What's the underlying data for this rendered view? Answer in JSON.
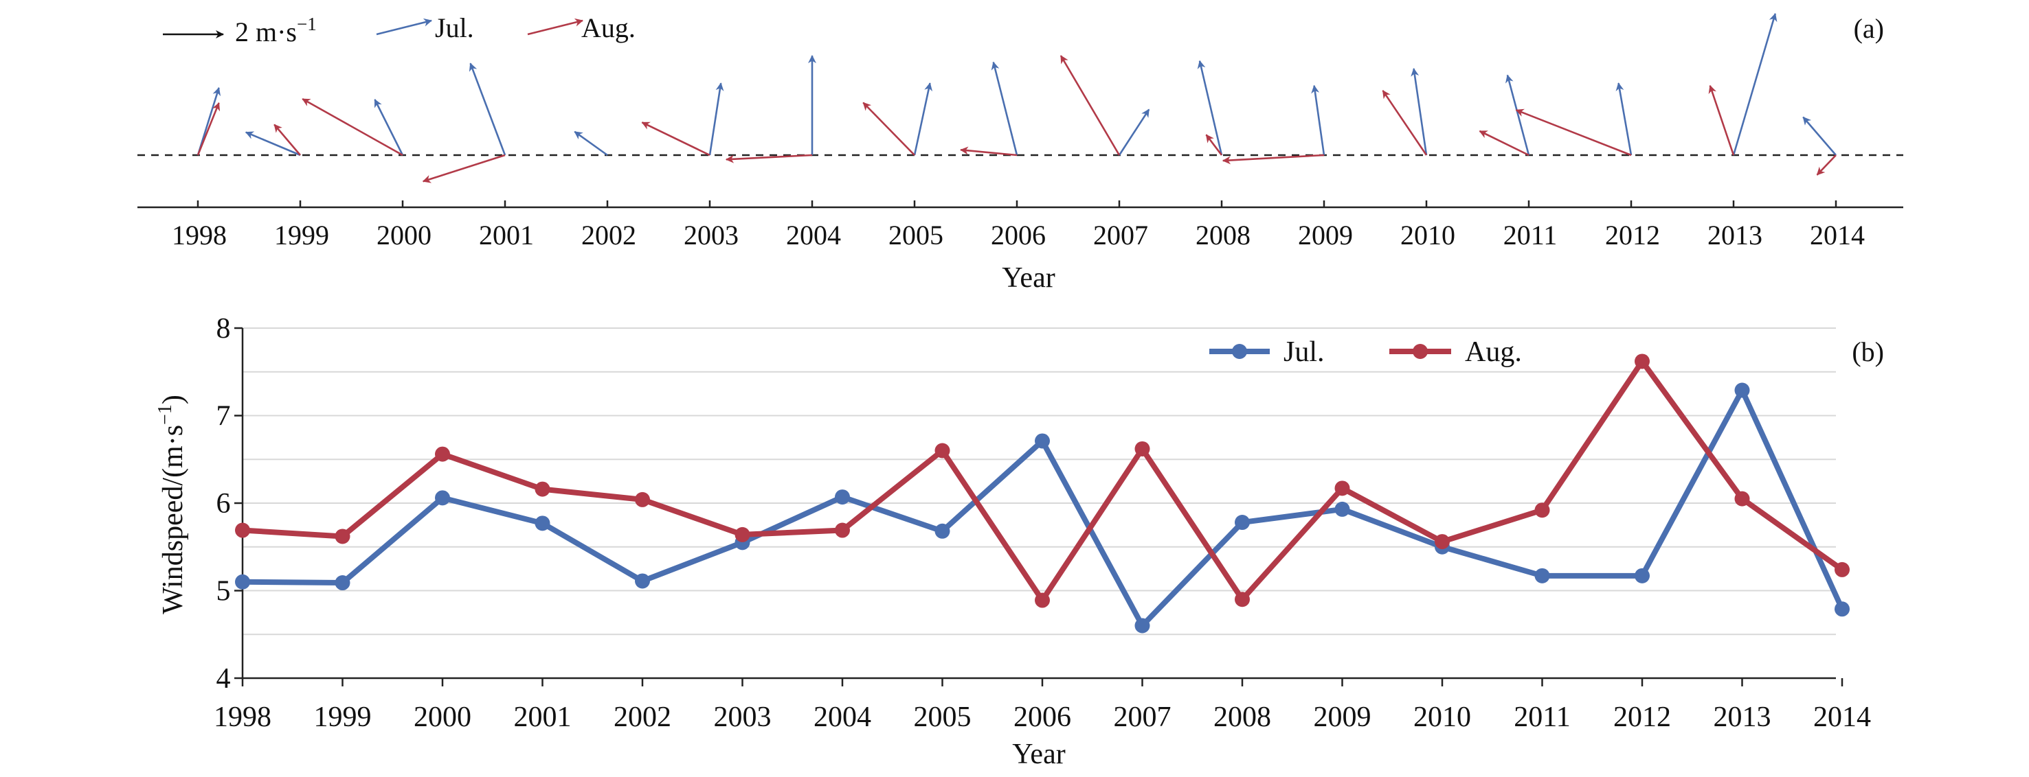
{
  "colors": {
    "jul": "#4a6fb0",
    "aug": "#b23a48",
    "axis": "#222222",
    "grid": "#d8d8d8"
  },
  "chart_data": [
    {
      "type": "vector",
      "panel_label": "(a)",
      "xlabel": "Year",
      "categories": [
        "1998",
        "1999",
        "2000",
        "2001",
        "2002",
        "2003",
        "2004",
        "2005",
        "2006",
        "2007",
        "2008",
        "2009",
        "2010",
        "2011",
        "2012",
        "2013",
        "2014"
      ],
      "reference": {
        "arrow_label": "2 m·s",
        "exponent": "−1",
        "length_ms": 2
      },
      "legend": [
        {
          "name": "Jul.",
          "color": "#4a6fb0"
        },
        {
          "name": "Aug.",
          "color": "#b23a48"
        }
      ],
      "series": [
        {
          "name": "Jul.",
          "u": [
            0.68,
            -1.76,
            -0.9,
            -1.12,
            -1.06,
            0.36,
            0,
            0.5,
            -0.76,
            0.96,
            -0.71,
            -0.32,
            -0.41,
            -0.69,
            -0.41,
            1.35,
            -1.06
          ],
          "v": [
            2.18,
            0.74,
            1.8,
            2.97,
            0.76,
            2.33,
            3.22,
            2.33,
            3.01,
            1.48,
            3.05,
            2.25,
            2.8,
            2.59,
            2.33,
            4.58,
            1.23
          ]
        },
        {
          "name": "Aug.",
          "u": [
            0.68,
            -0.84,
            -3.24,
            -2.65,
            0,
            -2.19,
            -2.78,
            -1.66,
            -1.82,
            -1.89,
            -0.5,
            -3.27,
            -1.41,
            -1.59,
            -3.72,
            -0.76,
            -0.61
          ],
          "v": [
            1.69,
            0.99,
            1.82,
            -0.85,
            0,
            1.06,
            -0.14,
            1.7,
            0.17,
            3.22,
            0.66,
            -0.18,
            2.09,
            0.78,
            1.46,
            2.25,
            -0.64
          ]
        }
      ]
    },
    {
      "type": "line",
      "panel_label": "(b)",
      "xlabel": "Year",
      "ylabel": "Windspeed/(m·s",
      "ylabel_exponent": "−1",
      "ylabel_close": ")",
      "ylim": [
        4,
        8
      ],
      "yticks": [
        "4",
        "5",
        "6",
        "7",
        "8"
      ],
      "grid": true,
      "legend_position": "top-center",
      "categories": [
        "1998",
        "1999",
        "2000",
        "2001",
        "2002",
        "2003",
        "2004",
        "2005",
        "2006",
        "2007",
        "2008",
        "2009",
        "2010",
        "2011",
        "2012",
        "2013",
        "2014"
      ],
      "series": [
        {
          "name": "Jul.",
          "color": "#4a6fb0",
          "values": [
            5.1,
            5.09,
            6.06,
            5.77,
            5.11,
            5.55,
            6.07,
            5.68,
            6.71,
            4.6,
            5.78,
            5.93,
            5.5,
            5.17,
            5.17,
            7.29,
            4.79
          ]
        },
        {
          "name": "Aug.",
          "color": "#b23a48",
          "values": [
            5.69,
            5.62,
            6.56,
            6.16,
            6.04,
            5.64,
            5.69,
            6.6,
            4.89,
            6.62,
            4.9,
            6.17,
            5.56,
            5.92,
            7.62,
            6.05,
            5.24
          ]
        }
      ]
    }
  ]
}
